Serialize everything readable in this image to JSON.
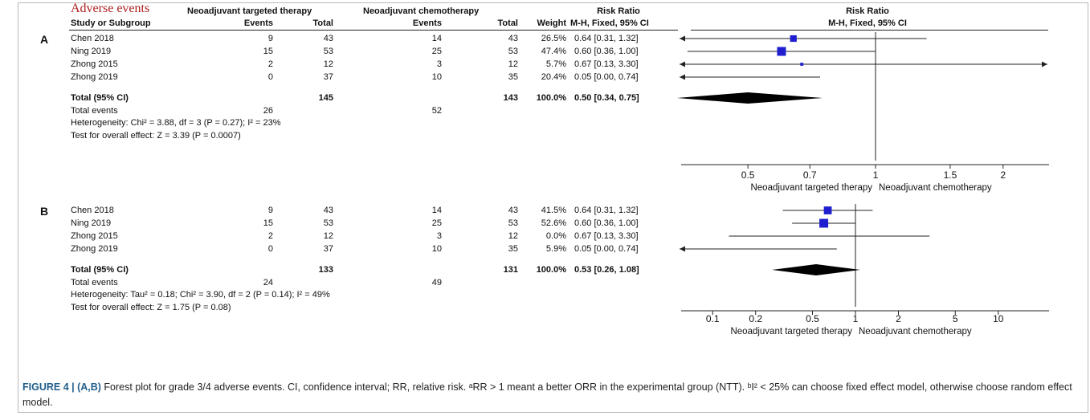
{
  "header": {
    "adverse_events": "Adverse events",
    "group1": "Neoadjuvant targeted therapy",
    "group2": "Neoadjuvant chemotherapy",
    "risk_ratio": "Risk Ratio",
    "risk_ratio_plot": "Risk Ratio",
    "study_or_subgroup": "Study or Subgroup",
    "events1": "Events",
    "total1": "Total",
    "events2": "Events",
    "total2": "Total",
    "weight": "Weight",
    "method": "M-H, Fixed, 95% CI",
    "method_plot": "M-H, Fixed, 95% CI"
  },
  "panels": [
    {
      "letter": "A",
      "rows": [
        {
          "study": "Chen 2018",
          "e1": "9",
          "t1": "43",
          "e2": "14",
          "t2": "43",
          "weight": "26.5%",
          "ci": "0.64 [0.31, 1.32]"
        },
        {
          "study": "Ning 2019",
          "e1": "15",
          "t1": "53",
          "e2": "25",
          "t2": "53",
          "weight": "47.4%",
          "ci": "0.60 [0.36, 1.00]"
        },
        {
          "study": "Zhong 2015",
          "e1": "2",
          "t1": "12",
          "e2": "3",
          "t2": "12",
          "weight": "5.7%",
          "ci": "0.67 [0.13, 3.30]"
        },
        {
          "study": "Zhong 2019",
          "e1": "0",
          "t1": "37",
          "e2": "10",
          "t2": "35",
          "weight": "20.4%",
          "ci": "0.05 [0.00, 0.74]"
        }
      ],
      "total": {
        "label": "Total (95% CI)",
        "t1": "145",
        "t2": "143",
        "weight": "100.0%",
        "ci": "0.50 [0.34, 0.75]"
      },
      "total_events": {
        "label": "Total events",
        "e1": "26",
        "e2": "52"
      },
      "heterogeneity": "Heterogeneity: Chi² = 3.88, df = 3 (P = 0.27); I² = 23%",
      "overall_effect": "Test for overall effect: Z = 3.39 (P = 0.0007)",
      "axis_ticks": [
        "0.5",
        "0.7",
        "1",
        "1.5",
        "2"
      ],
      "favours_left": "Neoadjuvant targeted therapy",
      "favours_right": "Neoadjuvant chemotherapy"
    },
    {
      "letter": "B",
      "rows": [
        {
          "study": "Chen 2018",
          "e1": "9",
          "t1": "43",
          "e2": "14",
          "t2": "43",
          "weight": "41.5%",
          "ci": "0.64 [0.31, 1.32]"
        },
        {
          "study": "Ning 2019",
          "e1": "15",
          "t1": "53",
          "e2": "25",
          "t2": "53",
          "weight": "52.6%",
          "ci": "0.60 [0.36, 1.00]"
        },
        {
          "study": "Zhong 2015",
          "e1": "2",
          "t1": "12",
          "e2": "3",
          "t2": "12",
          "weight": "0.0%",
          "ci": "0.67 [0.13, 3.30]"
        },
        {
          "study": "Zhong 2019",
          "e1": "0",
          "t1": "37",
          "e2": "10",
          "t2": "35",
          "weight": "5.9%",
          "ci": "0.05 [0.00, 0.74]"
        }
      ],
      "total": {
        "label": "Total (95% CI)",
        "t1": "133",
        "t2": "131",
        "weight": "100.0%",
        "ci": "0.53 [0.26, 1.08]"
      },
      "total_events": {
        "label": "Total events",
        "e1": "24",
        "e2": "49"
      },
      "heterogeneity": "Heterogeneity: Tau² = 0.18; Chi² = 3.90, df = 2 (P = 0.14); I² = 49%",
      "overall_effect": "Test for overall effect: Z = 1.75 (P = 0.08)",
      "axis_ticks": [
        "0.1",
        "0.2",
        "0.5",
        "1",
        "2",
        "5",
        "10"
      ],
      "favours_left": "Neoadjuvant targeted therapy",
      "favours_right": "Neoadjuvant chemotherapy"
    }
  ],
  "chart_data": [
    {
      "type": "forest",
      "scale": "log",
      "xlim": [
        0.4,
        2.5
      ],
      "ticks": [
        0.5,
        0.7,
        1,
        1.5,
        2
      ],
      "reference_line": 1,
      "studies": [
        {
          "name": "Chen 2018",
          "rr": 0.64,
          "lo": 0.31,
          "hi": 1.32,
          "weight": 26.5
        },
        {
          "name": "Ning 2019",
          "rr": 0.6,
          "lo": 0.36,
          "hi": 1.0,
          "weight": 47.4
        },
        {
          "name": "Zhong 2015",
          "rr": 0.67,
          "lo": 0.13,
          "hi": 3.3,
          "weight": 5.7
        },
        {
          "name": "Zhong 2019",
          "rr": 0.05,
          "lo": 0.0,
          "hi": 0.74,
          "weight": 20.4
        }
      ],
      "pooled": {
        "rr": 0.5,
        "lo": 0.34,
        "hi": 0.75
      },
      "marker_color": "#1f1fd0"
    },
    {
      "type": "forest",
      "scale": "log",
      "xlim": [
        0.08,
        12.5
      ],
      "ticks": [
        0.1,
        0.2,
        0.5,
        1,
        2,
        5,
        10
      ],
      "reference_line": 1,
      "studies": [
        {
          "name": "Chen 2018",
          "rr": 0.64,
          "lo": 0.31,
          "hi": 1.32,
          "weight": 41.5
        },
        {
          "name": "Ning 2019",
          "rr": 0.6,
          "lo": 0.36,
          "hi": 1.0,
          "weight": 52.6
        },
        {
          "name": "Zhong 2015",
          "rr": 0.67,
          "lo": 0.13,
          "hi": 3.3,
          "weight": 0.0
        },
        {
          "name": "Zhong 2019",
          "rr": 0.05,
          "lo": 0.0,
          "hi": 0.74,
          "weight": 5.9
        }
      ],
      "pooled": {
        "rr": 0.53,
        "lo": 0.26,
        "hi": 1.08
      },
      "marker_color": "#1f1fd0"
    }
  ],
  "caption": {
    "label": "FIGURE 4 | (A,B)",
    "text": " Forest plot for grade 3/4 adverse events. CI, confidence interval; RR, relative risk. ᵃRR > 1 meant a better ORR in the experimental group (NTT). ᵇI² < 25% can choose fixed effect model, otherwise choose random effect model."
  }
}
